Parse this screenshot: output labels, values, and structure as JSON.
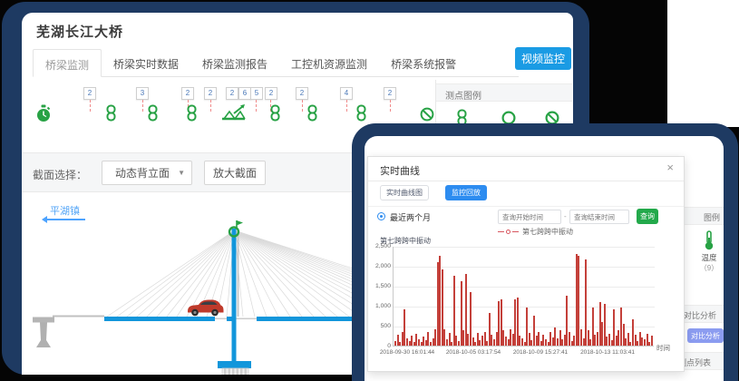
{
  "window": {
    "title": "芜湖长江大桥",
    "tabs": [
      "桥梁监测",
      "桥梁实时数据",
      "桥梁监测报告",
      "工控机资源监测",
      "桥梁系统报警"
    ],
    "active_tab": "桥梁监测",
    "video_button": "视频监控"
  },
  "sensor_strip": {
    "badges": [
      "2",
      "3",
      "2",
      "2",
      "2",
      "6",
      "5",
      "2",
      "2",
      "4",
      "2"
    ],
    "icons": [
      "stopwatch",
      "link",
      "link",
      "link",
      "truss-gauge",
      "link",
      "link",
      "link",
      "prohibition"
    ]
  },
  "legend_panel": {
    "title": "测点图例"
  },
  "section_toolbar": {
    "label": "截面选择：",
    "dropdown_value": "动态背立面",
    "dropdown_caret": "▼",
    "zoom_button": "放大截面"
  },
  "bridge": {
    "direction_label": "平湖镇"
  },
  "dialog": {
    "title": "实时曲线",
    "close": "×",
    "tab_preview": "实时曲线图",
    "tab_playback": "监控回放",
    "radio_label": "最近两个月",
    "start_placeholder": "查询开始时间",
    "separator": "-",
    "end_placeholder": "查询结束时间",
    "query_button": "查询",
    "legend_text": "第七跨跨中振动",
    "chart_label": "第七跨跨中振动"
  },
  "background_panel": {
    "legend_header": "图例",
    "temp_label": "温度",
    "temp_count": "（9）",
    "compare_header": "对比分析",
    "compare_button": "对比分析",
    "list_header": "测点列表"
  },
  "chart_data": {
    "type": "bar",
    "title": "第七跨跨中振动",
    "ylabel": "第七跨跨中振动",
    "xlabel": "时间",
    "ylim": [
      0,
      2500
    ],
    "grid": true,
    "legend_position": "top",
    "yticks": [
      "2,500",
      "2,000",
      "1,500",
      "1,000",
      "500",
      "0"
    ],
    "xticks": [
      "2018-09-30 16:01:44",
      "2018-10-05 03:17:54",
      "2018-10-09 15:27:41",
      "2018-10-13 11:03:41"
    ],
    "series": [
      {
        "name": "第七跨跨中振动",
        "values": [
          120,
          280,
          90,
          350,
          900,
          180,
          120,
          260,
          80,
          300,
          150,
          90,
          220,
          130,
          340,
          100,
          180,
          420,
          2100,
          2250,
          1900,
          420,
          160,
          310,
          90,
          1750,
          260,
          120,
          1620,
          380,
          1800,
          300,
          1350,
          210,
          90,
          320,
          140,
          260,
          350,
          110,
          820,
          280,
          150,
          340,
          1120,
          1150,
          380,
          220,
          160,
          420,
          300,
          1150,
          1200,
          260,
          180,
          90,
          950,
          310,
          140,
          740,
          240,
          330,
          120,
          280,
          160,
          90,
          340,
          210,
          460,
          190,
          380,
          160,
          280,
          1260,
          350,
          110,
          240,
          2300,
          2250,
          420,
          190,
          2150,
          380,
          160,
          950,
          280,
          350,
          1100,
          600,
          1050,
          220,
          300,
          140,
          900,
          260,
          380,
          950,
          550,
          180,
          320,
          90,
          650,
          280,
          120,
          350,
          200,
          150,
          300,
          100,
          250
        ]
      }
    ],
    "colors": {
      "series": "#c4403a"
    }
  }
}
